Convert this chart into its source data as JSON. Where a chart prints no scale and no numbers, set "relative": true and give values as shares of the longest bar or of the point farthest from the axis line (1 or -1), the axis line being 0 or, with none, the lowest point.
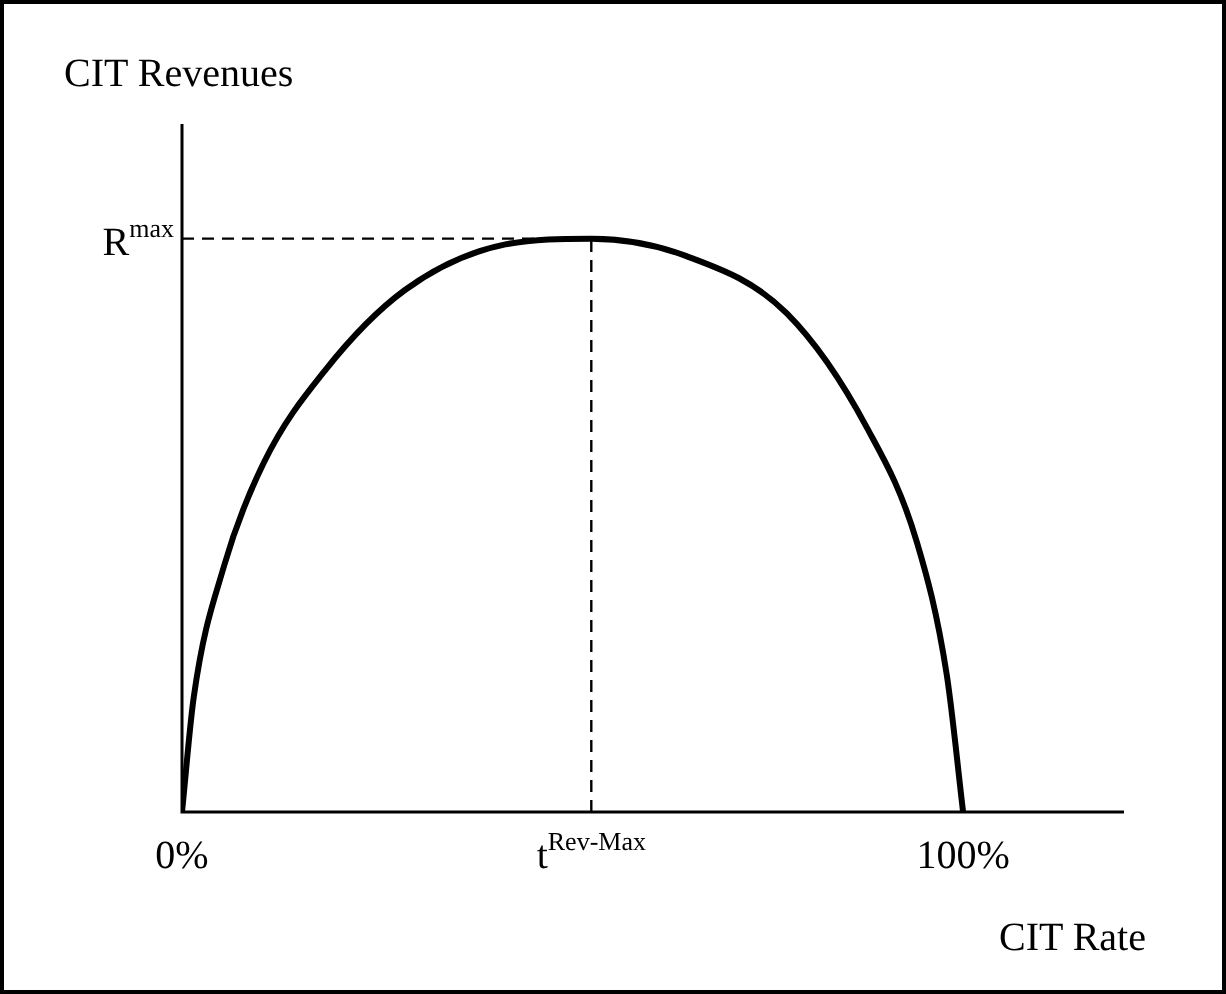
{
  "chart_data": {
    "type": "line",
    "xlabel": "CIT Rate",
    "ylabel": "CIT Revenues",
    "relative": true,
    "xlim": [
      0,
      120.6
    ],
    "xticks": [
      {
        "value": 0,
        "label": "0%"
      },
      {
        "value": 52.4,
        "label": "t$^{Rev-Max}$"
      },
      {
        "value": 100,
        "label": "100%"
      }
    ],
    "series": [
      {
        "color": "#000000",
        "x": [
          0,
          1.5,
          5.4,
          10.5,
          18.3,
          28.5,
          41.4,
          52.4,
          64.5,
          77.4,
          87.7,
          94.1,
          97.9,
          100
        ],
        "values": [
          0,
          0.2,
          0.43,
          0.61,
          0.77,
          0.91,
          0.99,
          1,
          0.97,
          0.87,
          0.67,
          0.47,
          0.24,
          0
        ]
      }
    ],
    "ref_lines": [
      {
        "axis": "y",
        "value": 1,
        "label": "R$^{max}$",
        "line_style": "dashed",
        "color": "#000000"
      },
      {
        "axis": "x",
        "value": 52.4,
        "line_style": "dashed",
        "color": "#000000"
      }
    ],
    "grid": false,
    "legend": false,
    "marker": "none",
    "line_style": "solid"
  }
}
